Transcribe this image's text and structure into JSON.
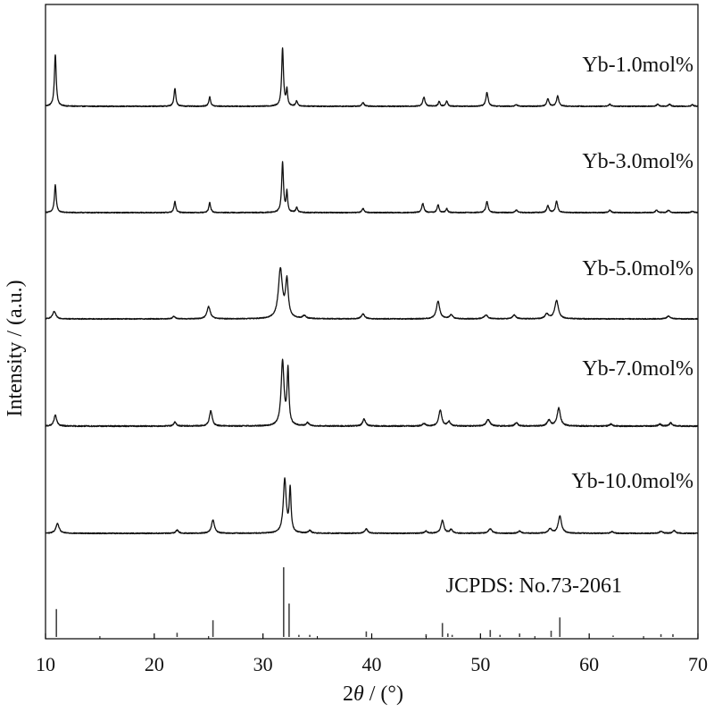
{
  "chart_data": {
    "type": "line",
    "xlabel_prefix": "2",
    "xlabel_symbol": "θ",
    "xlabel_suffix": " / (°)",
    "ylabel": "Intensity / (a.u.)",
    "xlim": [
      10,
      70
    ],
    "xticks": [
      "10",
      "20",
      "30",
      "40",
      "50",
      "60",
      "70"
    ],
    "y_ticks_shown": false,
    "grid": false,
    "series": [
      {
        "name": "Yb-1.0mol%",
        "peaks": [
          [
            10.9,
            1.0,
            0.1
          ],
          [
            21.9,
            0.35,
            0.1
          ],
          [
            25.1,
            0.18,
            0.1
          ],
          [
            31.8,
            1.12,
            0.1
          ],
          [
            32.2,
            0.3,
            0.08
          ],
          [
            33.1,
            0.1,
            0.1
          ],
          [
            39.2,
            0.07,
            0.12
          ],
          [
            44.8,
            0.18,
            0.12
          ],
          [
            46.2,
            0.09,
            0.1
          ],
          [
            46.9,
            0.1,
            0.1
          ],
          [
            50.6,
            0.27,
            0.12
          ],
          [
            53.3,
            0.03,
            0.12
          ],
          [
            56.2,
            0.15,
            0.12
          ],
          [
            57.1,
            0.2,
            0.12
          ],
          [
            61.9,
            0.04,
            0.12
          ],
          [
            66.3,
            0.04,
            0.12
          ],
          [
            67.4,
            0.04,
            0.12
          ],
          [
            69.5,
            0.03,
            0.12
          ]
        ]
      },
      {
        "name": "Yb-3.0mol%",
        "peaks": [
          [
            10.9,
            0.55,
            0.1
          ],
          [
            21.9,
            0.22,
            0.1
          ],
          [
            25.1,
            0.2,
            0.1
          ],
          [
            31.8,
            1.0,
            0.1
          ],
          [
            32.2,
            0.4,
            0.08
          ],
          [
            33.1,
            0.1,
            0.1
          ],
          [
            39.2,
            0.08,
            0.12
          ],
          [
            44.7,
            0.18,
            0.12
          ],
          [
            46.1,
            0.16,
            0.1
          ],
          [
            46.9,
            0.08,
            0.1
          ],
          [
            50.6,
            0.22,
            0.12
          ],
          [
            53.3,
            0.05,
            0.12
          ],
          [
            56.2,
            0.14,
            0.12
          ],
          [
            57.0,
            0.23,
            0.12
          ],
          [
            61.9,
            0.05,
            0.12
          ],
          [
            66.2,
            0.05,
            0.12
          ],
          [
            67.3,
            0.05,
            0.12
          ],
          [
            69.5,
            0.03,
            0.12
          ]
        ]
      },
      {
        "name": "Yb-5.0mol%",
        "peaks": [
          [
            10.8,
            0.15,
            0.18
          ],
          [
            21.8,
            0.05,
            0.15
          ],
          [
            25.0,
            0.25,
            0.18
          ],
          [
            31.6,
            1.0,
            0.22
          ],
          [
            32.2,
            0.75,
            0.15
          ],
          [
            33.8,
            0.06,
            0.18
          ],
          [
            39.2,
            0.1,
            0.18
          ],
          [
            46.1,
            0.36,
            0.18
          ],
          [
            47.3,
            0.08,
            0.18
          ],
          [
            50.5,
            0.08,
            0.2
          ],
          [
            53.1,
            0.08,
            0.18
          ],
          [
            56.1,
            0.1,
            0.18
          ],
          [
            57.0,
            0.37,
            0.2
          ],
          [
            67.3,
            0.06,
            0.18
          ]
        ]
      },
      {
        "name": "Yb-7.0mol%",
        "peaks": [
          [
            10.9,
            0.17,
            0.15
          ],
          [
            21.9,
            0.06,
            0.15
          ],
          [
            25.2,
            0.24,
            0.15
          ],
          [
            31.8,
            1.0,
            0.16
          ],
          [
            32.3,
            0.85,
            0.1
          ],
          [
            34.1,
            0.05,
            0.15
          ],
          [
            39.3,
            0.11,
            0.16
          ],
          [
            44.8,
            0.04,
            0.15
          ],
          [
            46.3,
            0.25,
            0.16
          ],
          [
            47.1,
            0.07,
            0.15
          ],
          [
            50.7,
            0.1,
            0.2
          ],
          [
            53.3,
            0.05,
            0.16
          ],
          [
            56.3,
            0.09,
            0.18
          ],
          [
            57.2,
            0.28,
            0.18
          ],
          [
            62.0,
            0.03,
            0.15
          ],
          [
            66.5,
            0.03,
            0.15
          ],
          [
            67.5,
            0.05,
            0.15
          ]
        ]
      },
      {
        "name": "Yb-10.0mol%",
        "peaks": [
          [
            11.1,
            0.18,
            0.18
          ],
          [
            22.1,
            0.06,
            0.15
          ],
          [
            25.4,
            0.25,
            0.16
          ],
          [
            32.0,
            1.0,
            0.16
          ],
          [
            32.5,
            0.8,
            0.1
          ],
          [
            34.3,
            0.05,
            0.15
          ],
          [
            39.5,
            0.08,
            0.16
          ],
          [
            45.0,
            0.04,
            0.15
          ],
          [
            46.5,
            0.24,
            0.16
          ],
          [
            47.3,
            0.07,
            0.15
          ],
          [
            50.9,
            0.08,
            0.2
          ],
          [
            53.6,
            0.04,
            0.16
          ],
          [
            56.4,
            0.08,
            0.18
          ],
          [
            57.3,
            0.32,
            0.18
          ],
          [
            62.1,
            0.03,
            0.15
          ],
          [
            66.6,
            0.04,
            0.15
          ],
          [
            67.8,
            0.05,
            0.15
          ]
        ]
      }
    ],
    "reference": {
      "name": "JCPDS: No.73-2061",
      "lines": [
        [
          11.0,
          0.4
        ],
        [
          22.1,
          0.06
        ],
        [
          25.4,
          0.24
        ],
        [
          31.9,
          1.0
        ],
        [
          32.4,
          0.48
        ],
        [
          33.3,
          0.03
        ],
        [
          34.3,
          0.03
        ],
        [
          39.5,
          0.08
        ],
        [
          45.0,
          0.04
        ],
        [
          46.5,
          0.2
        ],
        [
          47.0,
          0.05
        ],
        [
          47.4,
          0.03
        ],
        [
          50.9,
          0.1
        ],
        [
          51.8,
          0.03
        ],
        [
          53.6,
          0.05
        ],
        [
          56.5,
          0.09
        ],
        [
          57.3,
          0.28
        ],
        [
          62.2,
          0.02
        ],
        [
          66.6,
          0.04
        ],
        [
          67.7,
          0.04
        ]
      ]
    }
  }
}
